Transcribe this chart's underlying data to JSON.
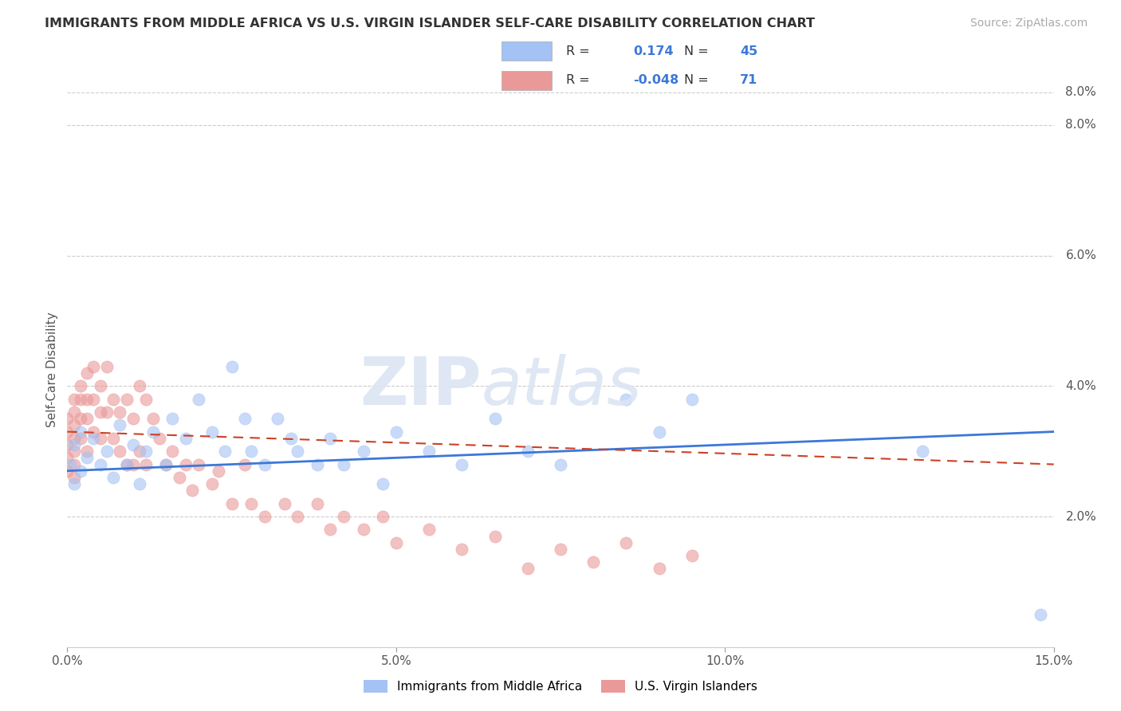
{
  "title": "IMMIGRANTS FROM MIDDLE AFRICA VS U.S. VIRGIN ISLANDER SELF-CARE DISABILITY CORRELATION CHART",
  "source": "Source: ZipAtlas.com",
  "ylabel": "Self-Care Disability",
  "xlim": [
    0.0,
    0.15
  ],
  "ylim": [
    0.0,
    0.085
  ],
  "x_ticks": [
    0.0,
    0.05,
    0.1,
    0.15
  ],
  "x_tick_labels": [
    "0.0%",
    "5.0%",
    "10.0%",
    "15.0%"
  ],
  "y_ticks_right": [
    0.02,
    0.04,
    0.06,
    0.08
  ],
  "y_tick_labels_right": [
    "2.0%",
    "4.0%",
    "6.0%",
    "8.0%"
  ],
  "blue_color": "#a4c2f4",
  "pink_color": "#ea9999",
  "blue_line_color": "#3c78d8",
  "pink_line_color": "#cc4125",
  "r_blue": "0.174",
  "n_blue": "45",
  "r_pink": "-0.048",
  "n_pink": "71",
  "legend_label_blue": "Immigrants from Middle Africa",
  "legend_label_pink": "U.S. Virgin Islanders",
  "blue_line_start_y": 0.027,
  "blue_line_end_y": 0.033,
  "pink_line_start_y": 0.033,
  "pink_line_end_y": 0.028,
  "blue_scatter_x": [
    0.0005,
    0.001,
    0.001,
    0.002,
    0.002,
    0.003,
    0.004,
    0.005,
    0.006,
    0.007,
    0.008,
    0.009,
    0.01,
    0.011,
    0.012,
    0.013,
    0.015,
    0.016,
    0.018,
    0.02,
    0.022,
    0.024,
    0.025,
    0.027,
    0.028,
    0.03,
    0.032,
    0.034,
    0.035,
    0.038,
    0.04,
    0.042,
    0.045,
    0.048,
    0.05,
    0.055,
    0.06,
    0.065,
    0.07,
    0.075,
    0.085,
    0.09,
    0.095,
    0.13,
    0.148
  ],
  "blue_scatter_y": [
    0.028,
    0.031,
    0.025,
    0.033,
    0.027,
    0.029,
    0.032,
    0.028,
    0.03,
    0.026,
    0.034,
    0.028,
    0.031,
    0.025,
    0.03,
    0.033,
    0.028,
    0.035,
    0.032,
    0.038,
    0.033,
    0.03,
    0.043,
    0.035,
    0.03,
    0.028,
    0.035,
    0.032,
    0.03,
    0.028,
    0.032,
    0.028,
    0.03,
    0.025,
    0.033,
    0.03,
    0.028,
    0.035,
    0.03,
    0.028,
    0.038,
    0.033,
    0.038,
    0.03,
    0.005
  ],
  "pink_scatter_x": [
    0.0,
    0.0,
    0.0,
    0.0,
    0.0,
    0.001,
    0.001,
    0.001,
    0.001,
    0.001,
    0.001,
    0.001,
    0.002,
    0.002,
    0.002,
    0.002,
    0.003,
    0.003,
    0.003,
    0.003,
    0.004,
    0.004,
    0.004,
    0.005,
    0.005,
    0.005,
    0.006,
    0.006,
    0.007,
    0.007,
    0.008,
    0.008,
    0.009,
    0.009,
    0.01,
    0.01,
    0.011,
    0.011,
    0.012,
    0.012,
    0.013,
    0.014,
    0.015,
    0.016,
    0.017,
    0.018,
    0.019,
    0.02,
    0.022,
    0.023,
    0.025,
    0.027,
    0.028,
    0.03,
    0.033,
    0.035,
    0.038,
    0.04,
    0.042,
    0.045,
    0.048,
    0.05,
    0.055,
    0.06,
    0.065,
    0.07,
    0.075,
    0.08,
    0.085,
    0.09,
    0.095
  ],
  "pink_scatter_y": [
    0.035,
    0.033,
    0.031,
    0.029,
    0.027,
    0.038,
    0.036,
    0.034,
    0.032,
    0.03,
    0.028,
    0.026,
    0.04,
    0.038,
    0.035,
    0.032,
    0.042,
    0.038,
    0.035,
    0.03,
    0.043,
    0.038,
    0.033,
    0.04,
    0.036,
    0.032,
    0.043,
    0.036,
    0.038,
    0.032,
    0.036,
    0.03,
    0.038,
    0.028,
    0.035,
    0.028,
    0.04,
    0.03,
    0.038,
    0.028,
    0.035,
    0.032,
    0.028,
    0.03,
    0.026,
    0.028,
    0.024,
    0.028,
    0.025,
    0.027,
    0.022,
    0.028,
    0.022,
    0.02,
    0.022,
    0.02,
    0.022,
    0.018,
    0.02,
    0.018,
    0.02,
    0.016,
    0.018,
    0.015,
    0.017,
    0.012,
    0.015,
    0.013,
    0.016,
    0.012,
    0.014
  ]
}
